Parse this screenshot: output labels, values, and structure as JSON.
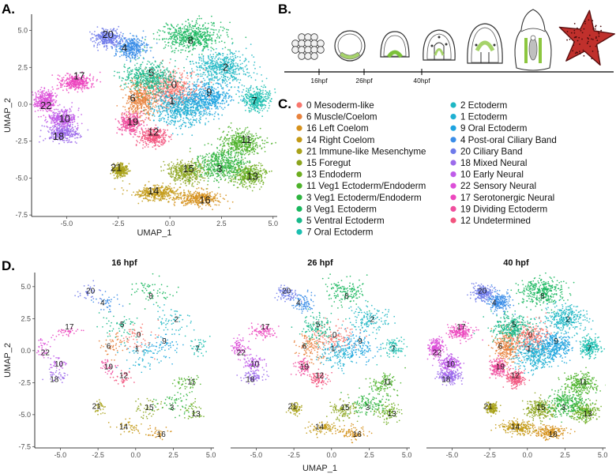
{
  "panels": {
    "a": "A.",
    "b": "B.",
    "c": "C.",
    "d": "D."
  },
  "timeline": {
    "stages": [
      "16hpf",
      "26hpf",
      "40hpf"
    ],
    "stage_x": [
      19,
      29,
      40
    ],
    "line_color": "#000000",
    "embryo_icons": [
      "morula",
      "blastula-16hpf",
      "gastrula-26hpf",
      "gastrula-late",
      "prism-40hpf",
      "larva",
      "adult-sea-star"
    ]
  },
  "legend": {
    "left": [
      {
        "label": "0 Mesoderm-like",
        "color": "#F8766D"
      },
      {
        "label": "6 Muscle/Coelom",
        "color": "#E8823D"
      },
      {
        "label": "16 Left Coelom",
        "color": "#D6911C"
      },
      {
        "label": "14 Right Coelom",
        "color": "#C39A16"
      },
      {
        "label": "21 Immune-like Mesenchyme",
        "color": "#A9A21A"
      },
      {
        "label": "15 Foregut",
        "color": "#8CA41E"
      },
      {
        "label": "13 Endoderm",
        "color": "#6DAD1F"
      },
      {
        "label": "11 Veg1 Ectoderm/Endoderm",
        "color": "#4DB22A"
      },
      {
        "label": "3 Veg1 Ectoderm/Endoderm",
        "color": "#2EB43F"
      },
      {
        "label": "8 Veg1 Ectoderm",
        "color": "#18B75E"
      },
      {
        "label": "5 Ventral Ectoderm",
        "color": "#18B98A"
      },
      {
        "label": "7 Oral Ectoderm",
        "color": "#1BBFB0"
      }
    ],
    "right": [
      {
        "label": "2 Ectoderm",
        "color": "#1EB7C4"
      },
      {
        "label": "1 Ectoderm",
        "color": "#1EB0D2"
      },
      {
        "label": "9 Oral Ectoderm",
        "color": "#1DA3E0"
      },
      {
        "label": "4 Post-oral Ciliary Band",
        "color": "#3A8DE8"
      },
      {
        "label": "20 Ciliary Band",
        "color": "#6E7AEA"
      },
      {
        "label": "18 Mixed Neural",
        "color": "#9C6BEB"
      },
      {
        "label": "10 Early Neural",
        "color": "#BF5CE9"
      },
      {
        "label": "22 Sensory Neural",
        "color": "#DC4FD8"
      },
      {
        "label": "17 Serotonergic Neural",
        "color": "#EC47BE"
      },
      {
        "label": "19 Dividing Ectoderm",
        "color": "#F04E9E"
      },
      {
        "label": "12 Undetermined",
        "color": "#F2547E"
      }
    ]
  },
  "chart_data": [
    {
      "type": "scatter",
      "xlabel": "UMAP_1",
      "ylabel": "UMAP_2",
      "xticks": [
        -5.0,
        -2.5,
        0.0,
        2.5,
        5.0
      ],
      "yticks": [
        -7.5,
        -5.0,
        -2.5,
        0.0,
        2.5,
        5.0
      ],
      "xlim": [
        -6.7,
        5.2
      ],
      "ylim": [
        -7.6,
        6.1
      ],
      "clusters": [
        {
          "id": "0",
          "color": "#F8766D",
          "x": 0.1,
          "y": 1.0,
          "sx": 0.9,
          "sy": 0.8
        },
        {
          "id": "6",
          "color": "#E8823D",
          "x": -1.4,
          "y": 0.3,
          "sx": 0.55,
          "sy": 0.8
        },
        {
          "id": "16",
          "color": "#D6911C",
          "x": 1.4,
          "y": -6.4,
          "sx": 0.7,
          "sy": 0.35
        },
        {
          "id": "14",
          "color": "#C39A16",
          "x": -0.6,
          "y": -6.0,
          "sx": 0.8,
          "sy": 0.35
        },
        {
          "id": "21",
          "color": "#A9A21A",
          "x": -2.4,
          "y": -4.5,
          "sx": 0.25,
          "sy": 0.3
        },
        {
          "id": "15",
          "color": "#8CA41E",
          "x": 0.8,
          "y": -4.6,
          "sx": 0.6,
          "sy": 0.55
        },
        {
          "id": "13",
          "color": "#6DAD1F",
          "x": 3.8,
          "y": -4.8,
          "sx": 0.55,
          "sy": 0.5
        },
        {
          "id": "11",
          "color": "#4DB22A",
          "x": 3.5,
          "y": -2.6,
          "sx": 0.7,
          "sy": 0.55
        },
        {
          "id": "3",
          "color": "#2EB43F",
          "x": 2.5,
          "y": -4.1,
          "sx": 0.85,
          "sy": 0.65
        },
        {
          "id": "8",
          "color": "#18B75E",
          "x": 1.0,
          "y": 4.6,
          "sx": 1.0,
          "sy": 0.7
        },
        {
          "id": "5",
          "color": "#18B98A",
          "x": -1.0,
          "y": 1.8,
          "sx": 0.8,
          "sy": 0.7
        },
        {
          "id": "7",
          "color": "#1BBFB0",
          "x": 4.2,
          "y": 0.3,
          "sx": 0.45,
          "sy": 0.5
        },
        {
          "id": "2",
          "color": "#1EB7C4",
          "x": 2.5,
          "y": 2.5,
          "sx": 0.9,
          "sy": 0.7
        },
        {
          "id": "1",
          "color": "#1EB0D2",
          "x": 0.5,
          "y": -0.3,
          "sx": 0.9,
          "sy": 0.8
        },
        {
          "id": "9",
          "color": "#1DA3E0",
          "x": 1.8,
          "y": 0.4,
          "sx": 0.8,
          "sy": 0.7
        },
        {
          "id": "4",
          "color": "#3A8DE8",
          "x": -1.9,
          "y": 3.8,
          "sx": 0.5,
          "sy": 0.5
        },
        {
          "id": "20",
          "color": "#6E7AEA",
          "x": -3.0,
          "y": 4.5,
          "sx": 0.45,
          "sy": 0.4
        },
        {
          "id": "18",
          "color": "#9C6BEB",
          "x": -5.2,
          "y": -2.0,
          "sx": 0.5,
          "sy": 0.35
        },
        {
          "id": "10",
          "color": "#BF5CE9",
          "x": -5.2,
          "y": -1.0,
          "sx": 0.45,
          "sy": 0.4
        },
        {
          "id": "22",
          "color": "#DC4FD8",
          "x": -6.1,
          "y": 0.2,
          "sx": 0.35,
          "sy": 0.5
        },
        {
          "id": "17",
          "color": "#EC47BE",
          "x": -4.5,
          "y": 1.5,
          "sx": 0.55,
          "sy": 0.35
        },
        {
          "id": "19",
          "color": "#F04E9E",
          "x": -1.9,
          "y": -1.3,
          "sx": 0.35,
          "sy": 0.45
        },
        {
          "id": "12",
          "color": "#F2547E",
          "x": -0.8,
          "y": -2.2,
          "sx": 0.45,
          "sy": 0.4
        }
      ],
      "labels": [
        {
          "id": "20",
          "x": -3.0,
          "y": 4.7
        },
        {
          "id": "4",
          "x": -2.2,
          "y": 3.8
        },
        {
          "id": "8",
          "x": 1.0,
          "y": 4.3
        },
        {
          "id": "2",
          "x": 2.7,
          "y": 2.5
        },
        {
          "id": "17",
          "x": -4.4,
          "y": 1.9
        },
        {
          "id": "5",
          "x": -0.9,
          "y": 2.1
        },
        {
          "id": "0",
          "x": 0.2,
          "y": 1.3
        },
        {
          "id": "9",
          "x": 1.9,
          "y": 0.8
        },
        {
          "id": "6",
          "x": -1.8,
          "y": 0.4
        },
        {
          "id": "1",
          "x": 0.1,
          "y": 0.2
        },
        {
          "id": "7",
          "x": 4.1,
          "y": 0.2
        },
        {
          "id": "22",
          "x": -6.0,
          "y": -0.1
        },
        {
          "id": "10",
          "x": -5.1,
          "y": -1.0
        },
        {
          "id": "19",
          "x": -1.8,
          "y": -1.2
        },
        {
          "id": "12",
          "x": -0.8,
          "y": -1.9
        },
        {
          "id": "18",
          "x": -5.4,
          "y": -2.2
        },
        {
          "id": "11",
          "x": 3.7,
          "y": -2.4
        },
        {
          "id": "21",
          "x": -2.6,
          "y": -4.3
        },
        {
          "id": "15",
          "x": 0.9,
          "y": -4.4
        },
        {
          "id": "3",
          "x": 2.4,
          "y": -4.4
        },
        {
          "id": "13",
          "x": 4.0,
          "y": -4.9
        },
        {
          "id": "14",
          "x": -0.8,
          "y": -5.9
        },
        {
          "id": "16",
          "x": 1.7,
          "y": -6.5
        }
      ]
    },
    {
      "type": "scatter",
      "facets": [
        {
          "title": "16 hpf",
          "density": 0.18
        },
        {
          "title": "26 hpf",
          "density": 0.42
        },
        {
          "title": "40 hpf",
          "density": 1.0
        }
      ],
      "xlabel": "UMAP_1",
      "ylabel": "UMAP_2",
      "xticks": [
        -5.0,
        -2.5,
        0.0,
        2.5,
        5.0
      ],
      "yticks": [
        -7.5,
        -5.0,
        -2.5,
        0.0,
        2.5,
        5.0
      ],
      "xlim": [
        -6.7,
        5.2
      ],
      "ylim": [
        -7.6,
        6.1
      ]
    }
  ]
}
